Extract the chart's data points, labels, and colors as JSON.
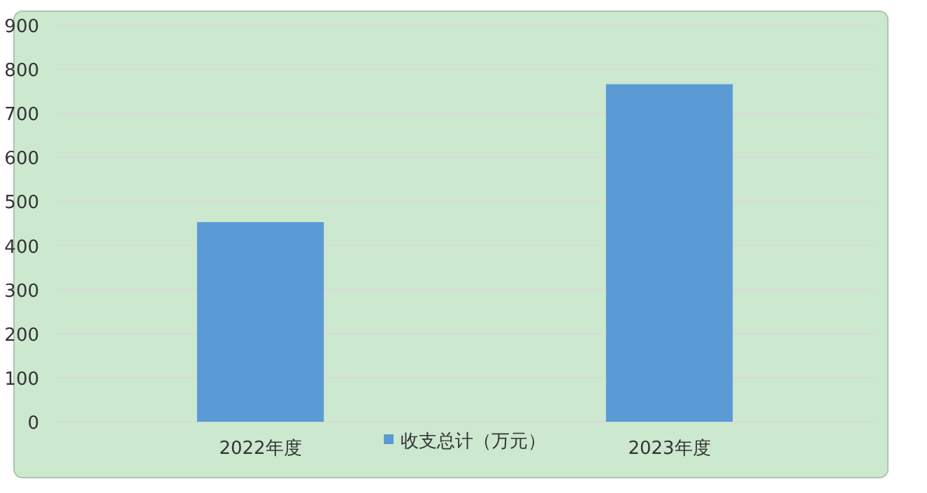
{
  "chart_data": {
    "type": "bar",
    "categories": [
      "2022年度",
      "2023年度"
    ],
    "series": [
      {
        "name": "收支总计（万元）",
        "color": "#5b9bd5",
        "values": [
          453,
          766
        ]
      }
    ],
    "ylim": [
      0,
      900
    ],
    "yticks": [
      0,
      100,
      200,
      300,
      400,
      500,
      600,
      700,
      800,
      900
    ],
    "grid": "y",
    "legend": "bottom"
  }
}
